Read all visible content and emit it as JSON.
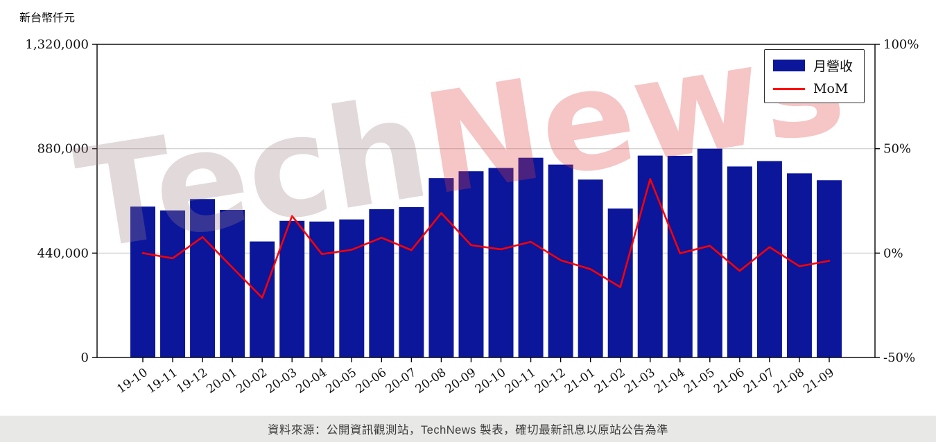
{
  "page": {
    "unit_label": "新台幣仟元",
    "footer": "資料來源：公開資訊觀測站，TechNews 製表，確切最新訊息以原站公告為準"
  },
  "watermark": {
    "part1": "Tech",
    "part2": "News"
  },
  "legend": {
    "bar_label": "月營收",
    "line_label": "MoM"
  },
  "colors": {
    "bar": "#0b169b",
    "line": "#ff0000",
    "grid": "#cccccc",
    "axis": "#000000",
    "footer_bg": "#e8e8e6"
  },
  "chart_data": {
    "type": "bar",
    "title": "",
    "xlabel": "",
    "ylabel_left": "新台幣仟元",
    "ylabel_right": "%",
    "grid": "horizontal",
    "legend_position": "top-right",
    "categories": [
      "19-10",
      "19-11",
      "19-12",
      "20-01",
      "20-02",
      "20-03",
      "20-04",
      "20-05",
      "20-06",
      "20-07",
      "20-08",
      "20-09",
      "20-10",
      "20-11",
      "20-12",
      "21-01",
      "21-02",
      "21-03",
      "21-04",
      "21-05",
      "21-06",
      "21-07",
      "21-08",
      "21-09"
    ],
    "series": [
      {
        "name": "月營收",
        "type": "bar",
        "axis": "left",
        "color": "#0b169b",
        "values": [
          636000,
          620000,
          668000,
          622000,
          489000,
          576000,
          573000,
          582000,
          625000,
          634000,
          756000,
          785000,
          799000,
          842000,
          813000,
          750000,
          628000,
          851000,
          850000,
          880000,
          805000,
          828000,
          776000,
          747000
        ]
      },
      {
        "name": "MoM",
        "type": "line",
        "axis": "right",
        "color": "#ff0000",
        "unit": "%",
        "values": [
          0,
          -2.5,
          7.7,
          -6.9,
          -21.4,
          17.8,
          -0.5,
          1.6,
          7.4,
          1.4,
          19.2,
          3.8,
          1.8,
          5.4,
          -3.4,
          -7.7,
          -16.3,
          35.5,
          -0.1,
          3.5,
          -8.5,
          2.9,
          -6.3,
          -3.7
        ]
      }
    ],
    "y_left": {
      "min": 0,
      "max": 1320000,
      "ticks": [
        0,
        440000,
        880000,
        1320000
      ],
      "tick_labels": [
        "0",
        "440,000",
        "880,000",
        "1,320,000"
      ]
    },
    "y_right": {
      "min": -50,
      "max": 100,
      "ticks": [
        -50,
        0,
        50,
        100
      ],
      "tick_labels": [
        "-50%",
        "0%",
        "50%",
        "100%"
      ]
    }
  }
}
